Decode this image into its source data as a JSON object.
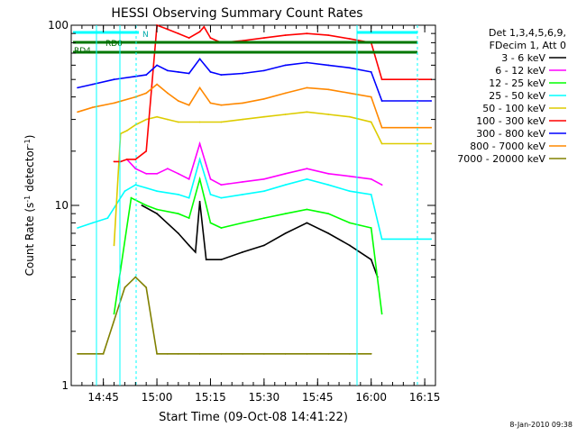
{
  "chart_data": {
    "type": "line",
    "title": "HESSI Observing Summary Count Rates",
    "xlabel": "Start Time (09-Oct-08 14:41:22)",
    "ylabel_main": "Count Rate (s",
    "ylabel_sup": "-1",
    "ylabel_tail": " detector",
    "ylabel_sup2": "-1",
    "ylabel_close": ")",
    "yscale": "log",
    "ylim": [
      1,
      100
    ],
    "xlim_minutes": [
      14.6,
      16.3
    ],
    "x_ticks": [
      {
        "label": "14:45",
        "t": 14.75
      },
      {
        "label": "15:00",
        "t": 15.0
      },
      {
        "label": "15:15",
        "t": 15.25
      },
      {
        "label": "15:30",
        "t": 15.5
      },
      {
        "label": "15:45",
        "t": 15.75
      },
      {
        "label": "16:00",
        "t": 16.0
      },
      {
        "label": "16:15",
        "t": 16.25
      }
    ],
    "y_ticks": [
      {
        "label": "1",
        "v": 1
      },
      {
        "label": "10",
        "v": 10
      },
      {
        "label": "100",
        "v": 100
      }
    ],
    "legend_header": [
      "Det 1,3,4,5,6,9,",
      "FDecim 1, Att 0"
    ],
    "legend_position": "top-right",
    "series": [
      {
        "name": "3 - 6 keV",
        "color": "#000000",
        "x": [
          14.8,
          14.88,
          14.93,
          15.0,
          15.1,
          15.15,
          15.18,
          15.2,
          15.23,
          15.3,
          15.4,
          15.5,
          15.6,
          15.7,
          15.8,
          15.9,
          16.0,
          16.03
        ],
        "y": [
          null,
          null,
          10,
          9,
          7,
          6,
          5.5,
          10.5,
          5,
          5,
          5.5,
          6,
          7,
          8,
          7,
          6,
          5,
          4
        ]
      },
      {
        "name": "6 - 12 keV",
        "color": "#ff00ff",
        "x": [
          14.86,
          14.9,
          14.95,
          15.0,
          15.05,
          15.1,
          15.15,
          15.2,
          15.25,
          15.3,
          15.4,
          15.5,
          15.6,
          15.7,
          15.8,
          15.9,
          16.0,
          16.05
        ],
        "y": [
          18,
          16,
          15,
          15,
          16,
          15,
          14,
          22,
          14,
          13,
          13.5,
          14,
          15,
          16,
          15,
          14.5,
          14,
          13
        ]
      },
      {
        "name": "12 - 25 keV",
        "color": "#00ff00",
        "x": [
          14.8,
          14.88,
          14.95,
          15.0,
          15.1,
          15.15,
          15.2,
          15.25,
          15.3,
          15.4,
          15.5,
          15.6,
          15.7,
          15.8,
          15.9,
          16.0,
          16.05
        ],
        "y": [
          2.5,
          11,
          10,
          9.5,
          9,
          8.5,
          14,
          8,
          7.5,
          8,
          8.5,
          9,
          9.5,
          9,
          8,
          7.5,
          2.5
        ]
      },
      {
        "name": "25 - 50 keV",
        "color": "#00ffff",
        "x": [
          14.63,
          14.7,
          14.77,
          14.85,
          14.9,
          14.95,
          15.0,
          15.1,
          15.15,
          15.2,
          15.25,
          15.3,
          15.4,
          15.5,
          15.6,
          15.7,
          15.8,
          15.9,
          16.0,
          16.05,
          16.28
        ],
        "y": [
          7.5,
          8,
          8.5,
          12,
          13,
          12.5,
          12,
          11.5,
          11,
          18,
          11.5,
          11,
          11.5,
          12,
          13,
          14,
          13,
          12,
          11.5,
          6.5,
          6.5
        ]
      },
      {
        "name": "50 - 100 keV",
        "color": "#ddcc00",
        "x": [
          14.8,
          14.83,
          14.86,
          14.9,
          14.95,
          15.0,
          15.05,
          15.1,
          15.2,
          15.3,
          15.4,
          15.5,
          15.6,
          15.7,
          15.8,
          15.9,
          16.0,
          16.05,
          16.28
        ],
        "y": [
          6,
          25,
          26,
          28,
          30,
          31,
          30,
          29,
          29,
          29,
          30,
          31,
          32,
          33,
          32,
          31,
          29,
          22,
          22
        ]
      },
      {
        "name": "100 - 300 keV",
        "color": "#ff0000",
        "x": [
          14.8,
          14.83,
          14.86,
          14.9,
          14.95,
          15.0,
          15.05,
          15.1,
          15.15,
          15.2,
          15.22,
          15.25,
          15.3,
          15.4,
          15.5,
          15.6,
          15.7,
          15.8,
          15.9,
          16.0,
          16.05,
          16.28
        ],
        "y": [
          17.5,
          17.5,
          18,
          18,
          20,
          100,
          95,
          90,
          85,
          92,
          98,
          85,
          80,
          82,
          85,
          88,
          90,
          88,
          84,
          80,
          50,
          50
        ]
      },
      {
        "name": "300 - 800 keV",
        "color": "#0000ff",
        "x": [
          14.63,
          14.7,
          14.8,
          14.9,
          14.95,
          15.0,
          15.05,
          15.1,
          15.15,
          15.2,
          15.25,
          15.3,
          15.4,
          15.5,
          15.6,
          15.7,
          15.8,
          15.9,
          16.0,
          16.05,
          16.28
        ],
        "y": [
          45,
          47,
          50,
          52,
          53,
          60,
          56,
          55,
          54,
          65,
          55,
          53,
          54,
          56,
          60,
          62,
          60,
          58,
          55,
          38,
          38
        ]
      },
      {
        "name": "800 - 7000 keV",
        "color": "#ff8800",
        "x": [
          14.63,
          14.7,
          14.8,
          14.9,
          14.95,
          15.0,
          15.05,
          15.1,
          15.15,
          15.2,
          15.25,
          15.3,
          15.4,
          15.5,
          15.6,
          15.7,
          15.8,
          15.9,
          16.0,
          16.05,
          16.28
        ],
        "y": [
          33,
          35,
          37,
          40,
          42,
          47,
          42,
          38,
          36,
          45,
          37,
          36,
          37,
          39,
          42,
          45,
          44,
          42,
          40,
          27,
          27
        ]
      },
      {
        "name": "7000 - 20000 keV",
        "color": "#808000",
        "x": [
          14.63,
          14.75,
          14.85,
          14.9,
          14.95,
          15.0,
          15.05,
          15.1,
          15.2,
          15.3,
          15.4,
          15.5,
          15.6,
          15.7,
          15.8,
          15.9,
          16.0
        ],
        "y": [
          1.5,
          1.5,
          3.5,
          4,
          3.5,
          1.5,
          1.5,
          1.5,
          1.5,
          1.5,
          1.5,
          1.5,
          1.5,
          1.5,
          1.5,
          1.5,
          1.5
        ]
      }
    ],
    "annotations": [
      {
        "label": "N"
      },
      {
        "label": "RD0"
      },
      {
        "label": "RD4"
      }
    ],
    "timestamp": "8-Jan-2010 09:38"
  }
}
